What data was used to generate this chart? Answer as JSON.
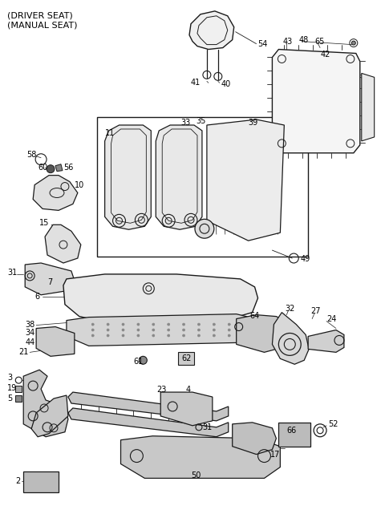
{
  "title_line1": "(DRIVER SEAT)",
  "title_line2": "(MANUAL SEAT)",
  "bg_color": "#ffffff",
  "lc": "#1a1a1a",
  "fig_w": 4.8,
  "fig_h": 6.56,
  "dpi": 100
}
